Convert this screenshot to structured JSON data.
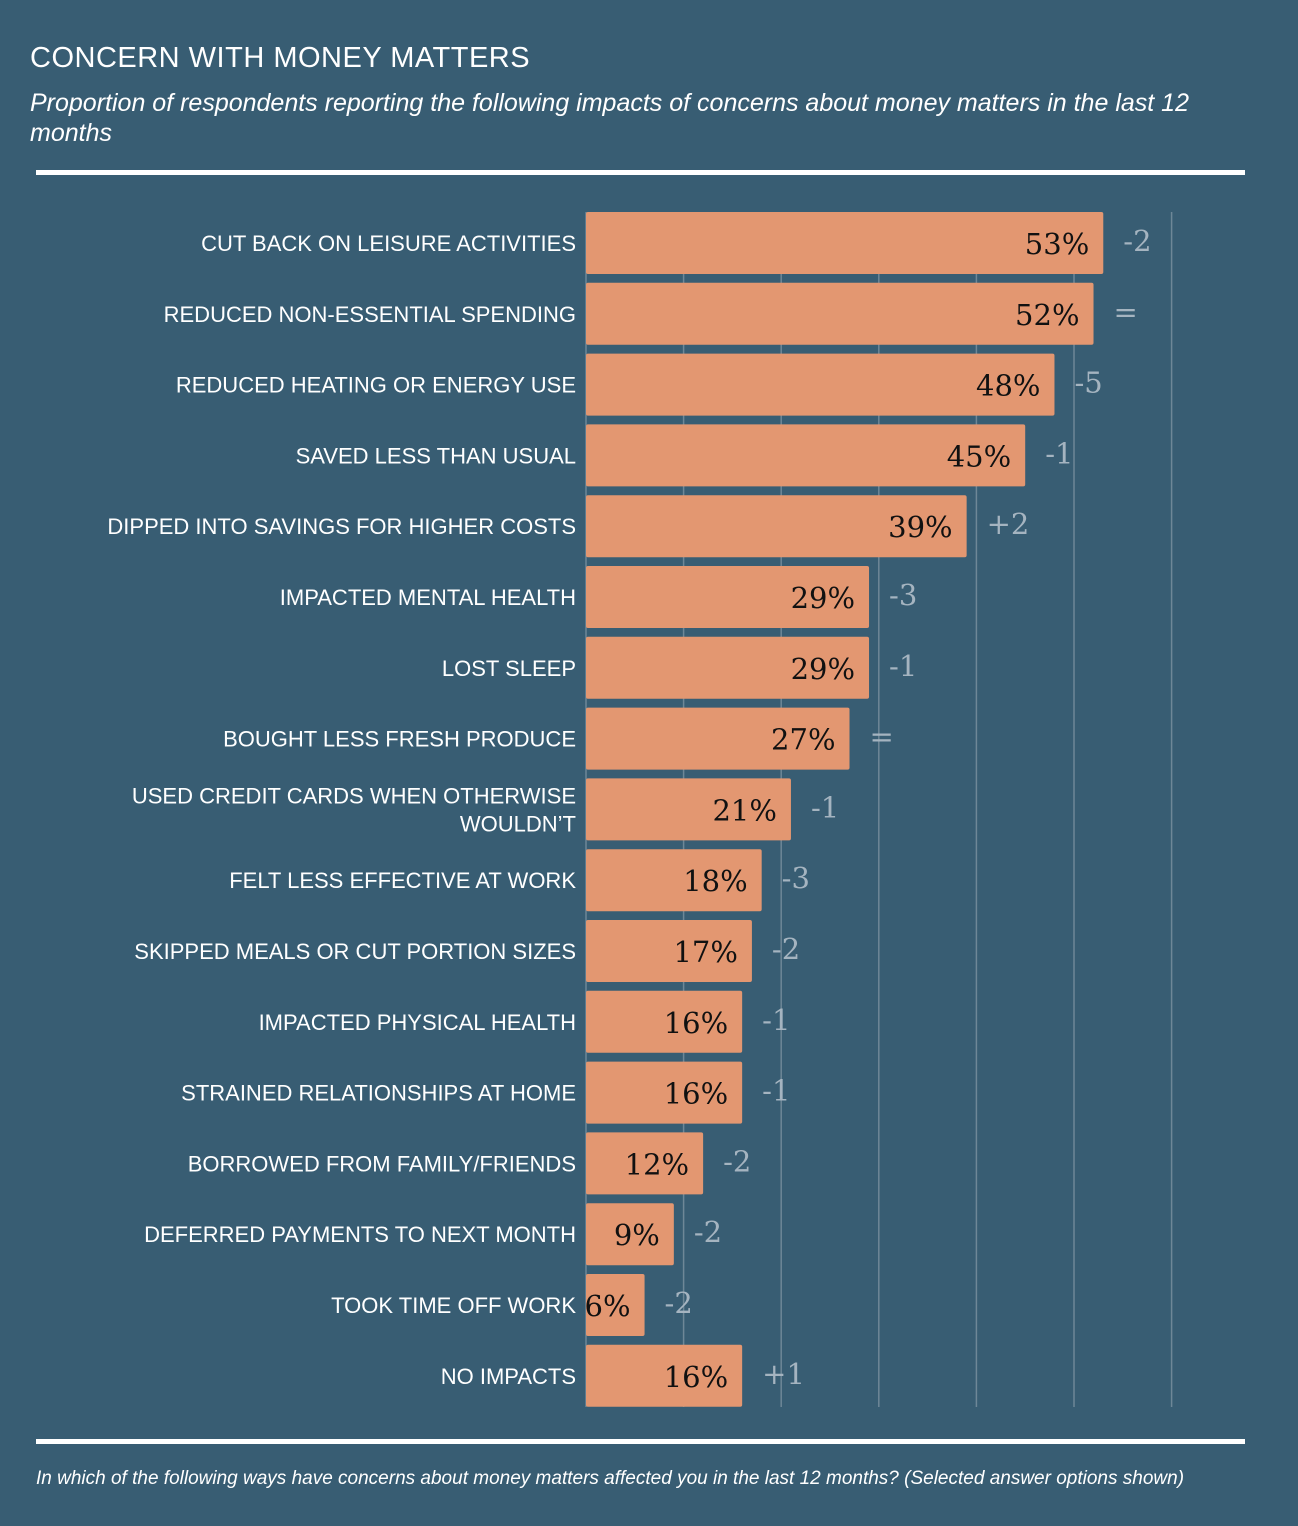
{
  "header": {
    "title": "CONCERN WITH MONEY MATTERS",
    "subtitle": "Proportion of respondents reporting the following impacts of concerns about money matters in the last 12 months"
  },
  "footnote": "In which of the following ways have concerns about money matters affected you in the last 12 months? (Selected answer options shown)",
  "colors": {
    "background": "#385d73",
    "bar": "#e39771",
    "gridline": "#6e8797",
    "change_text": "#a5b4c0"
  },
  "chart_data": {
    "type": "bar",
    "orientation": "horizontal",
    "title": "CONCERN WITH MONEY MATTERS",
    "xlim": [
      0,
      60
    ],
    "grid": true,
    "unit": "%",
    "categories": [
      [
        "CUT BACK ON LEISURE ACTIVITIES"
      ],
      [
        "REDUCED NON-ESSENTIAL SPENDING"
      ],
      [
        "REDUCED HEATING OR ENERGY USE"
      ],
      [
        "SAVED LESS THAN USUAL"
      ],
      [
        "DIPPED INTO SAVINGS FOR HIGHER COSTS"
      ],
      [
        "IMPACTED MENTAL HEALTH"
      ],
      [
        "LOST SLEEP"
      ],
      [
        "BOUGHT LESS FRESH PRODUCE"
      ],
      [
        "USED CREDIT CARDS WHEN OTHERWISE",
        "WOULDN’T"
      ],
      [
        "FELT LESS EFFECTIVE AT WORK"
      ],
      [
        "SKIPPED MEALS OR CUT PORTION SIZES"
      ],
      [
        "IMPACTED PHYSICAL HEALTH"
      ],
      [
        "STRAINED RELATIONSHIPS AT HOME"
      ],
      [
        "BORROWED FROM FAMILY/FRIENDS"
      ],
      [
        "DEFERRED PAYMENTS TO NEXT MONTH"
      ],
      [
        "TOOK TIME OFF WORK"
      ],
      [
        "NO IMPACTS"
      ]
    ],
    "values": [
      53,
      52,
      48,
      45,
      39,
      29,
      29,
      27,
      21,
      18,
      17,
      16,
      16,
      12,
      9,
      6,
      16
    ],
    "value_labels": [
      "53%",
      "52%",
      "48%",
      "45%",
      "39%",
      "29%",
      "29%",
      "27%",
      "21%",
      "18%",
      "17%",
      "16%",
      "16%",
      "12%",
      "9%",
      "6%",
      "16%"
    ],
    "changes": [
      "-2",
      "=",
      "-5",
      "-1",
      "+2",
      "-3",
      "-1",
      "=",
      "-1",
      "-3",
      "-2",
      "-1",
      "-1",
      "-2",
      "-2",
      "-2",
      "+1"
    ]
  }
}
